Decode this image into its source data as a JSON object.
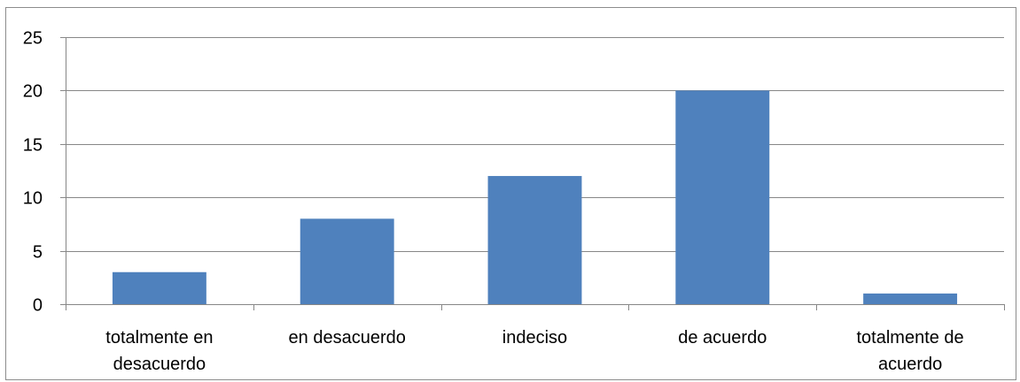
{
  "chart_data": {
    "type": "bar",
    "categories": [
      [
        "totalmente en",
        "desacuerdo"
      ],
      [
        "en desacuerdo"
      ],
      [
        "indeciso"
      ],
      [
        "de acuerdo"
      ],
      [
        "totalmente de",
        "acuerdo"
      ]
    ],
    "values": [
      3,
      8,
      12,
      20,
      1
    ],
    "title": "",
    "xlabel": "",
    "ylabel": "",
    "ylim": [
      0,
      25
    ],
    "yticks": [
      0,
      5,
      10,
      15,
      20,
      25
    ],
    "grid": true,
    "legend": "none",
    "colors": {
      "bar": "#4f81bd",
      "grid": "#878787",
      "axis": "#878787",
      "frame": "#8c8c8c"
    }
  }
}
